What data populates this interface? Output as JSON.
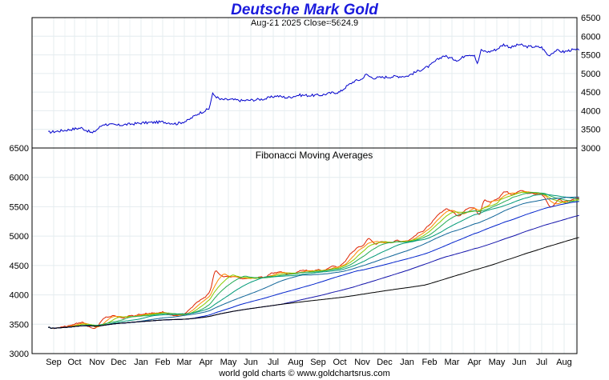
{
  "chart_title": "Deutsche Mark Gold",
  "subtitle": "Aug-21  2025   Close=5624.9",
  "footer": "world gold charts © www.goldchartsrus.com",
  "chart_data": [
    {
      "type": "line",
      "panel": "price",
      "title": "",
      "ylim": [
        3000,
        6500
      ],
      "y_ticks": [
        3000,
        3500,
        4000,
        4500,
        5000,
        5500,
        6000,
        6500
      ],
      "x_ticks": [
        "Sep",
        "Oct",
        "Nov",
        "Dec",
        "Jan",
        "Feb",
        "Mar",
        "Apr",
        "May",
        "Jun",
        "Jul",
        "Aug"
      ],
      "grid": true,
      "color": "#0000cc",
      "series": [
        {
          "x": [
            "Aug-24",
            "Sep-15",
            "Oct-10",
            "Oct-25",
            "Nov-10",
            "Dec-01",
            "Jan-01",
            "Feb-01",
            "Feb-20",
            "Mar-05",
            "Mar-20",
            "Apr-05",
            "Apr-10",
            "Apr-20",
            "May-05",
            "May-20",
            "Jun-05",
            "Jun-20",
            "Jul-05",
            "Jul-20",
            "Aug-05",
            "Aug-20",
            "Sep-05",
            "Sep-20",
            "Oct-01",
            "Oct-10",
            "Oct-20",
            "Nov-01",
            "Nov-05",
            "Nov-15",
            "Dec-01",
            "Dec-15",
            "Jan-01",
            "Jan-15",
            "Feb-01",
            "Feb-10",
            "Feb-20",
            "Mar-01",
            "Mar-10",
            "Mar-20",
            "Apr-01",
            "Apr-05",
            "Apr-10",
            "Apr-20",
            "May-01",
            "May-10",
            "May-20",
            "Jun-01",
            "Jun-10",
            "Jun-20",
            "Jul-01",
            "Jul-10",
            "Jul-20",
            "Aug-01",
            "Aug-10",
            "Aug-21"
          ],
          "values": [
            3420,
            3470,
            3540,
            3400,
            3640,
            3610,
            3670,
            3700,
            3650,
            3730,
            3920,
            4050,
            4450,
            4300,
            4300,
            4270,
            4290,
            4320,
            4400,
            4350,
            4420,
            4410,
            4420,
            4480,
            4500,
            4650,
            4790,
            4850,
            4980,
            4880,
            4900,
            4920,
            4930,
            5060,
            5200,
            5350,
            5480,
            5400,
            5350,
            5510,
            5500,
            5250,
            5620,
            5580,
            5650,
            5780,
            5700,
            5780,
            5720,
            5720,
            5700,
            5480,
            5620,
            5580,
            5630,
            5625
          ]
        }
      ]
    },
    {
      "type": "line",
      "panel": "indicator",
      "title": "Fibonacci Moving Averages",
      "ylim": [
        3000,
        6500
      ],
      "y_ticks": [
        3000,
        3500,
        4000,
        4500,
        5000,
        5500,
        6000,
        6500
      ],
      "x_ticks": [
        "Sep",
        "Oct",
        "Nov",
        "Dec",
        "Jan",
        "Feb",
        "Mar",
        "Apr",
        "May",
        "Jun",
        "Jul",
        "Aug"
      ],
      "grid": true,
      "series": [
        {
          "color": "#dd2200",
          "periods": 1
        },
        {
          "color": "#ff8800",
          "periods": 3
        },
        {
          "color": "#88cc00",
          "periods": 5
        },
        {
          "color": "#22aa55",
          "periods": 8
        },
        {
          "color": "#009977",
          "periods": 13
        },
        {
          "color": "#116699",
          "periods": 21
        },
        {
          "color": "#0022cc",
          "periods": 34
        },
        {
          "color": "#1111aa",
          "periods": 55
        },
        {
          "color": "#000000",
          "periods": 89
        }
      ]
    }
  ]
}
